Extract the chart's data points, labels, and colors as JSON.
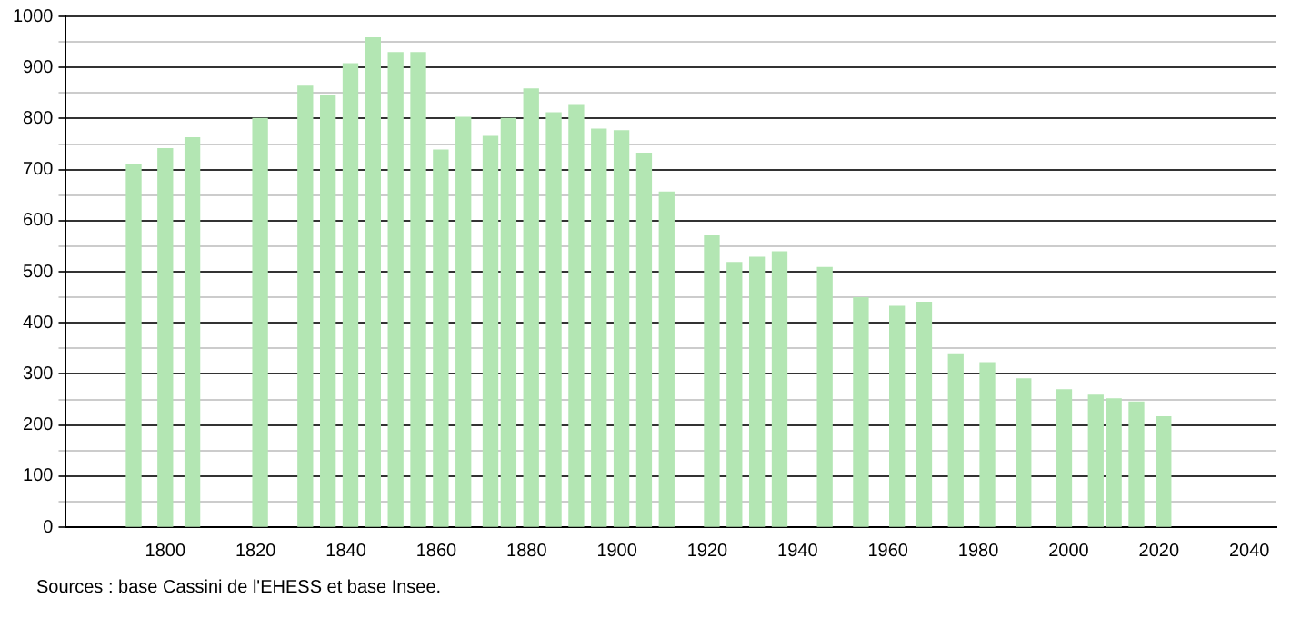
{
  "chart_data": {
    "type": "bar",
    "x": [
      1793,
      1800,
      1806,
      1821,
      1831,
      1836,
      1841,
      1846,
      1851,
      1856,
      1861,
      1866,
      1872,
      1876,
      1881,
      1886,
      1891,
      1896,
      1901,
      1906,
      1911,
      1921,
      1926,
      1931,
      1936,
      1946,
      1954,
      1962,
      1968,
      1975,
      1982,
      1990,
      1999,
      2006,
      2010,
      2015,
      2021
    ],
    "values": [
      709,
      741,
      762,
      800,
      863,
      846,
      907,
      958,
      929,
      929,
      738,
      802,
      765,
      800,
      858,
      811,
      827,
      779,
      776,
      732,
      656,
      570,
      518,
      528,
      539,
      508,
      449,
      432,
      440,
      339,
      322,
      290,
      269,
      258,
      251,
      245,
      216
    ],
    "color": "#b3e6b3",
    "xlim": [
      1778,
      2046
    ],
    "xticks": [
      1800,
      1820,
      1840,
      1860,
      1880,
      1900,
      1920,
      1940,
      1960,
      1980,
      2000,
      2020,
      2040
    ],
    "ylim": [
      0,
      1000
    ],
    "yticks": [
      0,
      {
        "value": 50,
        "label": null
      },
      100,
      {
        "value": 150,
        "label": null
      },
      200,
      {
        "value": 250,
        "label": null
      },
      300,
      {
        "value": 350,
        "label": null
      },
      400,
      {
        "value": 450,
        "label": null
      },
      500,
      {
        "value": 550,
        "label": null
      },
      600,
      {
        "value": 650,
        "label": null
      },
      700,
      {
        "value": 750,
        "label": null
      },
      800,
      {
        "value": 850,
        "label": null
      },
      900,
      {
        "value": 950,
        "label": null
      },
      1000
    ],
    "grid": "y",
    "legend": false,
    "annotations": [
      "Sources : base Cassini de l'EHESS et base Insee."
    ]
  }
}
